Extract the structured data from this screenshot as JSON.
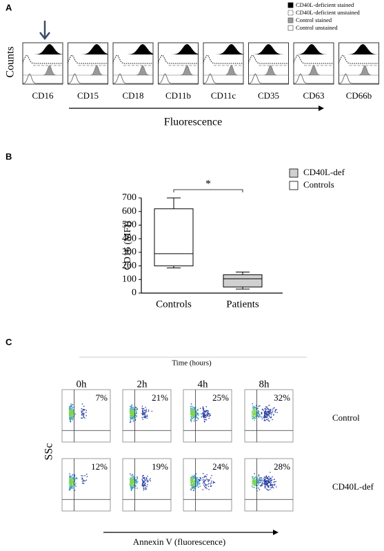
{
  "panel_a": {
    "label": "A",
    "y_label": "Counts",
    "x_label": "Fluorescence",
    "legend": [
      "CD40L-deficient stained",
      "CD40L-deficient unstained",
      "Control stained",
      "Control unstained"
    ],
    "markers": [
      "CD16",
      "CD15",
      "CD18",
      "CD11b",
      "CD11c",
      "CD35",
      "CD63",
      "CD66b"
    ]
  },
  "chart_data": {
    "type": "box",
    "label": "B",
    "y_label": "CD16 (MFI)",
    "categories": [
      "Controls",
      "Patients"
    ],
    "boxes": [
      {
        "min": 185,
        "q1": 200,
        "median": 290,
        "q3": 620,
        "max": 700,
        "color": "#ffffff"
      },
      {
        "min": 30,
        "q1": 45,
        "median": 105,
        "q3": 135,
        "max": 155,
        "color": "#d0d0d0"
      }
    ],
    "legend": [
      {
        "name": "CD40L-def",
        "color": "#d0d0d0"
      },
      {
        "name": "Controls",
        "color": "#ffffff"
      }
    ],
    "annotation": "*",
    "ylim": [
      0,
      700
    ],
    "yticks": [
      0,
      100,
      200,
      300,
      400,
      500,
      600,
      700
    ]
  },
  "panel_c": {
    "label": "C",
    "title": "Time (hours)",
    "y_label": "SSc",
    "x_label": "Annexin V (fluorescence)",
    "times": [
      "0h",
      "2h",
      "4h",
      "8h"
    ],
    "rows": [
      "Control",
      "CD40L-def"
    ],
    "percentages": [
      [
        "7%",
        "21%",
        "25%",
        "32%"
      ],
      [
        "12%",
        "19%",
        "24%",
        "28%"
      ]
    ]
  }
}
